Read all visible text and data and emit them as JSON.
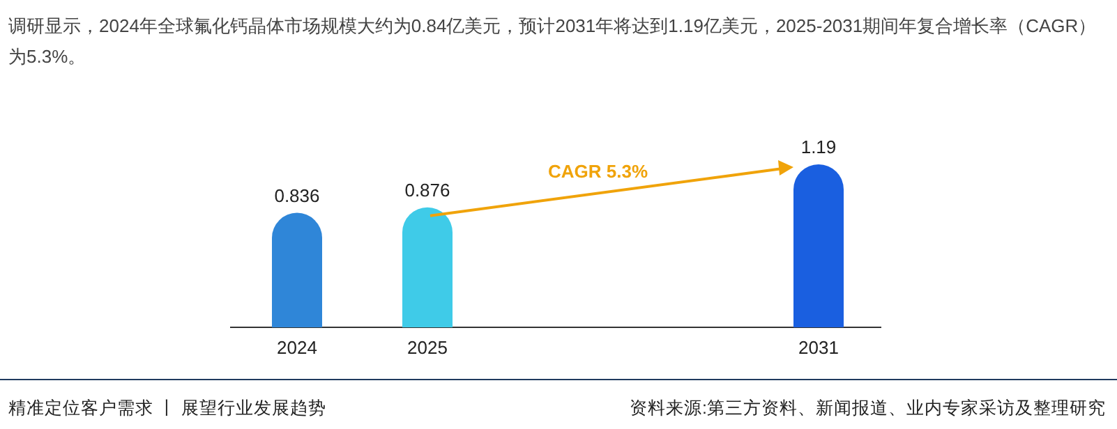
{
  "chart_data": {
    "type": "bar",
    "title": "调研显示，2024年全球氟化钙晶体市场规模大约为0.84亿美元，预计2031年将达到1.19亿美元，2025-2031期间年复合增长率（CAGR）为5.3%。",
    "categories": [
      "2024",
      "2025",
      null,
      null,
      "2031"
    ],
    "values": [
      0.836,
      0.876,
      null,
      null,
      1.19
    ],
    "colors": [
      "#2f86d8",
      "#3fcbe8",
      null,
      null,
      "#1a5fe0"
    ],
    "data_labels": true,
    "annotations": [
      "CAGR 5.3%",
      "精准定位客户需求 丨 展望行业发展趋势",
      "资料来源:第三方资料、新闻报道、业内专家采访及整理研究"
    ]
  }
}
